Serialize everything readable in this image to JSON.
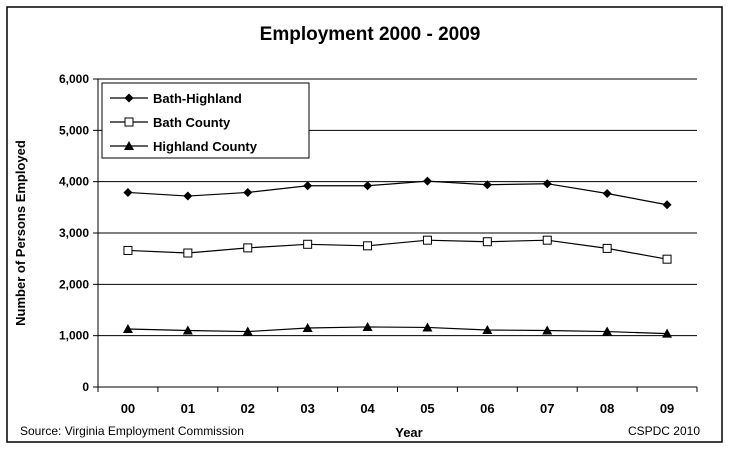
{
  "chart_data": {
    "type": "line",
    "title": "Employment 2000 - 2009",
    "xlabel": "Year",
    "ylabel": "Number of Persons Employed",
    "categories": [
      "00",
      "01",
      "02",
      "03",
      "04",
      "05",
      "06",
      "07",
      "08",
      "09"
    ],
    "ylim": [
      0,
      6000
    ],
    "yticks": [
      0,
      1000,
      2000,
      3000,
      4000,
      5000,
      6000
    ],
    "ytick_labels": [
      "0",
      "1,000",
      "2,000",
      "3,000",
      "4,000",
      "5,000",
      "6,000"
    ],
    "grid": true,
    "legend_position": "top-left",
    "series": [
      {
        "name": "Bath-Highland",
        "marker": "diamond",
        "color": "#000000",
        "values": [
          3790,
          3720,
          3790,
          3920,
          3920,
          4010,
          3940,
          3960,
          3770,
          3550
        ]
      },
      {
        "name": "Bath County",
        "marker": "square-open",
        "color": "#000000",
        "values": [
          2660,
          2610,
          2710,
          2780,
          2750,
          2860,
          2830,
          2860,
          2700,
          2490
        ]
      },
      {
        "name": "Highland County",
        "marker": "triangle",
        "color": "#000000",
        "values": [
          1130,
          1100,
          1080,
          1150,
          1170,
          1160,
          1110,
          1100,
          1080,
          1040
        ]
      }
    ]
  },
  "footer": {
    "source": "Source: Virginia Employment Commission",
    "credit": "CSPDC 2010"
  }
}
